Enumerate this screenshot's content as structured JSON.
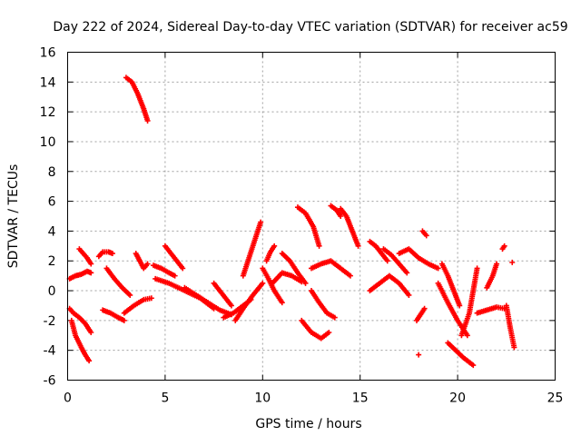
{
  "chart_data": {
    "type": "scatter",
    "title": "Day 222 of 2024, Sidereal Day-to-day VTEC variation (SDTVAR) for receiver ac59",
    "xlabel": "GPS time / hours",
    "ylabel": "SDTVAR / TECUs",
    "xlim": [
      0,
      25
    ],
    "ylim": [
      -6,
      16
    ],
    "xticks": [
      "0",
      "5",
      "10",
      "15",
      "20",
      "25"
    ],
    "yticks": [
      "-6",
      "-4",
      "-2",
      "0",
      "2",
      "4",
      "6",
      "8",
      "10",
      "12",
      "14",
      "16"
    ],
    "grid": true,
    "marker": "plus",
    "color": "#ff0000",
    "series": [
      {
        "name": "s1",
        "x": [
          0.1,
          0.4,
          0.7,
          1.0,
          1.2
        ],
        "y": [
          0.8,
          1.0,
          1.1,
          1.3,
          1.2
        ]
      },
      {
        "name": "s2",
        "x": [
          0.1,
          0.3,
          0.6,
          0.9,
          1.2
        ],
        "y": [
          -1.2,
          -1.5,
          -1.8,
          -2.2,
          -2.8
        ]
      },
      {
        "name": "s3",
        "x": [
          0.2,
          0.4,
          0.7,
          0.9,
          1.1
        ],
        "y": [
          -2.0,
          -3.0,
          -3.8,
          -4.3,
          -4.7
        ]
      },
      {
        "name": "s4",
        "x": [
          0.6,
          0.8,
          1.0,
          1.2
        ],
        "y": [
          2.8,
          2.5,
          2.2,
          1.8
        ]
      },
      {
        "name": "s5",
        "x": [
          1.6,
          1.8,
          2.1,
          2.3
        ],
        "y": [
          2.3,
          2.6,
          2.6,
          2.5
        ]
      },
      {
        "name": "s6",
        "x": [
          1.8,
          2.2,
          2.6,
          2.9
        ],
        "y": [
          -1.3,
          -1.5,
          -1.8,
          -2.0
        ]
      },
      {
        "name": "s7",
        "x": [
          2.0,
          2.4,
          2.8,
          3.2
        ],
        "y": [
          1.5,
          0.8,
          0.2,
          -0.3
        ]
      },
      {
        "name": "s8",
        "x": [
          3.0,
          3.3,
          3.6,
          3.9,
          4.1
        ],
        "y": [
          14.3,
          14.0,
          13.2,
          12.2,
          11.4
        ]
      },
      {
        "name": "s9",
        "x": [
          3.5,
          3.7,
          3.9,
          4.1
        ],
        "y": [
          2.5,
          2.0,
          1.5,
          1.8
        ]
      },
      {
        "name": "s10",
        "x": [
          2.9,
          3.4,
          3.9,
          4.3
        ],
        "y": [
          -1.5,
          -1.0,
          -0.6,
          -0.5
        ]
      },
      {
        "name": "s11",
        "x": [
          4.4,
          4.8,
          5.2,
          5.5
        ],
        "y": [
          1.7,
          1.5,
          1.2,
          1.0
        ]
      },
      {
        "name": "s12",
        "x": [
          5.0,
          5.3,
          5.6,
          5.9
        ],
        "y": [
          3.0,
          2.5,
          2.0,
          1.5
        ]
      },
      {
        "name": "s13",
        "x": [
          4.5,
          5.2,
          6.0,
          6.8,
          7.5
        ],
        "y": [
          0.8,
          0.5,
          0.0,
          -0.5,
          -1.2
        ]
      },
      {
        "name": "s14",
        "x": [
          6.0,
          6.6,
          7.2,
          7.8,
          8.4
        ],
        "y": [
          0.2,
          -0.3,
          -0.8,
          -1.3,
          -1.6
        ]
      },
      {
        "name": "s15",
        "x": [
          7.5,
          7.8,
          8.1,
          8.4
        ],
        "y": [
          0.5,
          0.0,
          -0.5,
          -1.0
        ]
      },
      {
        "name": "s16",
        "x": [
          8.0,
          8.5,
          9.0,
          9.4
        ],
        "y": [
          -1.8,
          -1.5,
          -1.0,
          -0.6
        ]
      },
      {
        "name": "s17",
        "x": [
          9.0,
          9.3,
          9.6,
          9.9
        ],
        "y": [
          1.0,
          2.2,
          3.4,
          4.6
        ]
      },
      {
        "name": "s18",
        "x": [
          8.6,
          9.0,
          9.5,
          10.0
        ],
        "y": [
          -2.0,
          -1.2,
          -0.3,
          0.5
        ]
      },
      {
        "name": "s19",
        "x": [
          10.2,
          10.4,
          10.6
        ],
        "y": [
          2.0,
          2.6,
          3.0
        ]
      },
      {
        "name": "s20",
        "x": [
          10.0,
          10.3,
          10.6,
          11.0
        ],
        "y": [
          1.5,
          0.8,
          0.0,
          -0.8
        ]
      },
      {
        "name": "s21",
        "x": [
          10.5,
          11.0,
          11.5,
          12.0
        ],
        "y": [
          0.5,
          1.2,
          1.0,
          0.6
        ]
      },
      {
        "name": "s22",
        "x": [
          11.0,
          11.4,
          11.8,
          12.2
        ],
        "y": [
          2.5,
          2.0,
          1.2,
          0.5
        ]
      },
      {
        "name": "s23",
        "x": [
          11.8,
          12.2,
          12.6,
          12.9
        ],
        "y": [
          5.6,
          5.2,
          4.3,
          3.0
        ]
      },
      {
        "name": "s24",
        "x": [
          12.0,
          12.5,
          13.0,
          13.4
        ],
        "y": [
          -2.0,
          -2.8,
          -3.2,
          -2.8
        ]
      },
      {
        "name": "s25",
        "x": [
          12.5,
          12.9,
          13.3,
          13.7
        ],
        "y": [
          0.0,
          -0.8,
          -1.5,
          -1.8
        ]
      },
      {
        "name": "s26",
        "x": [
          13.5,
          13.8,
          14.0
        ],
        "y": [
          5.7,
          5.4,
          5.0
        ]
      },
      {
        "name": "s27",
        "x": [
          14.0,
          14.3,
          14.6,
          14.9
        ],
        "y": [
          5.5,
          5.0,
          4.0,
          3.0
        ]
      },
      {
        "name": "s28",
        "x": [
          12.5,
          13.0,
          13.5,
          14.0,
          14.5
        ],
        "y": [
          1.5,
          1.8,
          2.0,
          1.5,
          1.0
        ]
      },
      {
        "name": "s29",
        "x": [
          15.5,
          15.8,
          16.1,
          16.4
        ],
        "y": [
          3.3,
          3.0,
          2.5,
          2.0
        ]
      },
      {
        "name": "s30",
        "x": [
          16.2,
          16.6,
          17.0,
          17.4
        ],
        "y": [
          2.8,
          2.4,
          1.8,
          1.2
        ]
      },
      {
        "name": "s31",
        "x": [
          15.5,
          16.0,
          16.5,
          17.0,
          17.5
        ],
        "y": [
          0.0,
          0.5,
          1.0,
          0.5,
          -0.3
        ]
      },
      {
        "name": "s32",
        "x": [
          17.0,
          17.5,
          18.0,
          18.5,
          19.0
        ],
        "y": [
          2.5,
          2.8,
          2.2,
          1.8,
          1.5
        ]
      },
      {
        "name": "s33",
        "x": [
          18.2,
          18.4
        ],
        "y": [
          4.0,
          3.7
        ]
      },
      {
        "name": "s34",
        "x": [
          17.9,
          18.1,
          18.3
        ],
        "y": [
          -2.0,
          -1.6,
          -1.2
        ]
      },
      {
        "name": "s35",
        "x": [
          18.0
        ],
        "y": [
          -4.3
        ]
      },
      {
        "name": "s36",
        "x": [
          19.2,
          19.5,
          19.8,
          20.1
        ],
        "y": [
          1.8,
          1.0,
          0.0,
          -1.0
        ]
      },
      {
        "name": "s37",
        "x": [
          19.5,
          19.9,
          20.3,
          20.8
        ],
        "y": [
          -3.5,
          -4.0,
          -4.5,
          -5.0
        ]
      },
      {
        "name": "s38",
        "x": [
          20.2,
          20.6,
          20.8,
          21.0
        ],
        "y": [
          -3.0,
          -1.5,
          0.0,
          1.5
        ]
      },
      {
        "name": "s39",
        "x": [
          19.0,
          19.5,
          20.0,
          20.5
        ],
        "y": [
          0.5,
          -0.8,
          -2.0,
          -3.0
        ]
      },
      {
        "name": "s40",
        "x": [
          21.5,
          21.8,
          22.0
        ],
        "y": [
          0.2,
          1.0,
          1.8
        ]
      },
      {
        "name": "s41",
        "x": [
          21.0,
          21.5,
          22.0,
          22.4
        ],
        "y": [
          -1.5,
          -1.3,
          -1.1,
          -1.2
        ]
      },
      {
        "name": "s42",
        "x": [
          22.3,
          22.4
        ],
        "y": [
          2.8,
          3.0
        ]
      },
      {
        "name": "s43",
        "x": [
          22.5,
          22.7,
          22.9
        ],
        "y": [
          -1.0,
          -2.5,
          -3.8
        ]
      },
      {
        "name": "s44",
        "x": [
          22.8
        ],
        "y": [
          1.9
        ]
      }
    ]
  }
}
